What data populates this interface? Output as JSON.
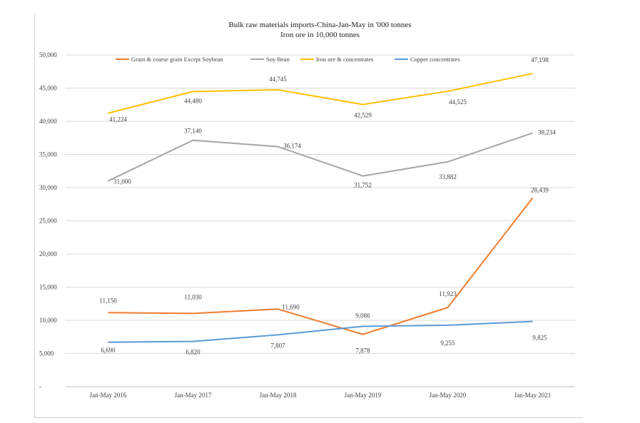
{
  "chart_data": {
    "type": "line",
    "title": "Bulk raw materials imports-China-Jan-May in '000 tonnes",
    "subtitle": "Iron ore in 10,000 tonnes",
    "xlabel": "",
    "ylabel": "",
    "categories": [
      "Jan-May 2016",
      "Jan-May 2017",
      "Jan-May 2018",
      "Jan-May 2019",
      "Jan-May 2020",
      "Jan-May 2021"
    ],
    "ylim": [
      0,
      50000
    ],
    "y_ticks": [
      "-",
      "5,000",
      "10,000",
      "15,000",
      "20,000",
      "25,000",
      "30,000",
      "35,000",
      "40,000",
      "45,000",
      "50,000"
    ],
    "grid": true,
    "legend_position": "top",
    "series": [
      {
        "name": "Grain & coarse grain Except Soybean",
        "color": "#ed7d31",
        "values": [
          11150,
          11030,
          11690,
          7878,
          11923,
          28439
        ],
        "labels": [
          "11,150",
          "11,030",
          "11,690",
          "7,878",
          "11,923",
          "28,439"
        ]
      },
      {
        "name": "Soy Bean",
        "color": "#a5a5a5",
        "values": [
          31000,
          37140,
          36174,
          31752,
          33882,
          38234
        ],
        "labels": [
          "31,000",
          "37,140",
          "36,174",
          "31,752",
          "33,882",
          "38,234"
        ]
      },
      {
        "name": "Iron ore & concentrates",
        "color": "#ffc000",
        "values": [
          41224,
          44480,
          44745,
          42529,
          44525,
          47198
        ],
        "labels": [
          "41,224",
          "44,480",
          "44,745",
          "42,529",
          "44,525",
          "47,198"
        ]
      },
      {
        "name": "Copper concentrates",
        "color": "#5b9bd5",
        "values": [
          6690,
          6820,
          7807,
          9086,
          9255,
          9825
        ],
        "labels": [
          "6,690",
          "6,820",
          "7,807",
          "9,086",
          "9,255",
          "9,825"
        ]
      }
    ]
  }
}
